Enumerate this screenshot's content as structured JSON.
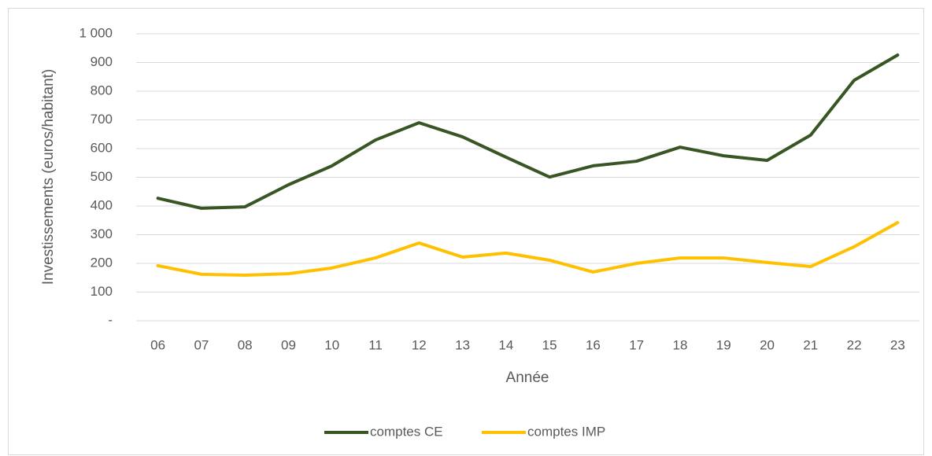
{
  "chart_data": {
    "type": "line",
    "x_label": "Année",
    "y_label": "Investissements (euros/habitant)",
    "categories": [
      "06",
      "07",
      "08",
      "09",
      "10",
      "11",
      "12",
      "13",
      "14",
      "15",
      "16",
      "17",
      "18",
      "19",
      "20",
      "21",
      "22",
      "23"
    ],
    "series": [
      {
        "name": "comptes CE",
        "color": "#375623",
        "values": [
          427,
          392,
          397,
          474,
          540,
          630,
          690,
          641,
          570,
          501,
          540,
          556,
          605,
          575,
          559,
          647,
          838,
          926
        ]
      },
      {
        "name": "comptes IMP",
        "color": "#ffc000",
        "values": [
          192,
          162,
          159,
          164,
          184,
          219,
          271,
          222,
          236,
          211,
          170,
          200,
          219,
          219,
          203,
          189,
          258,
          342
        ]
      }
    ],
    "ylim": [
      0,
      1000
    ],
    "yticks": [
      {
        "value": 0,
        "label": "-"
      },
      100,
      200,
      300,
      400,
      500,
      600,
      700,
      800,
      900,
      {
        "value": 1000,
        "label": "1 000"
      }
    ],
    "grid": true,
    "legend": "bottom"
  }
}
